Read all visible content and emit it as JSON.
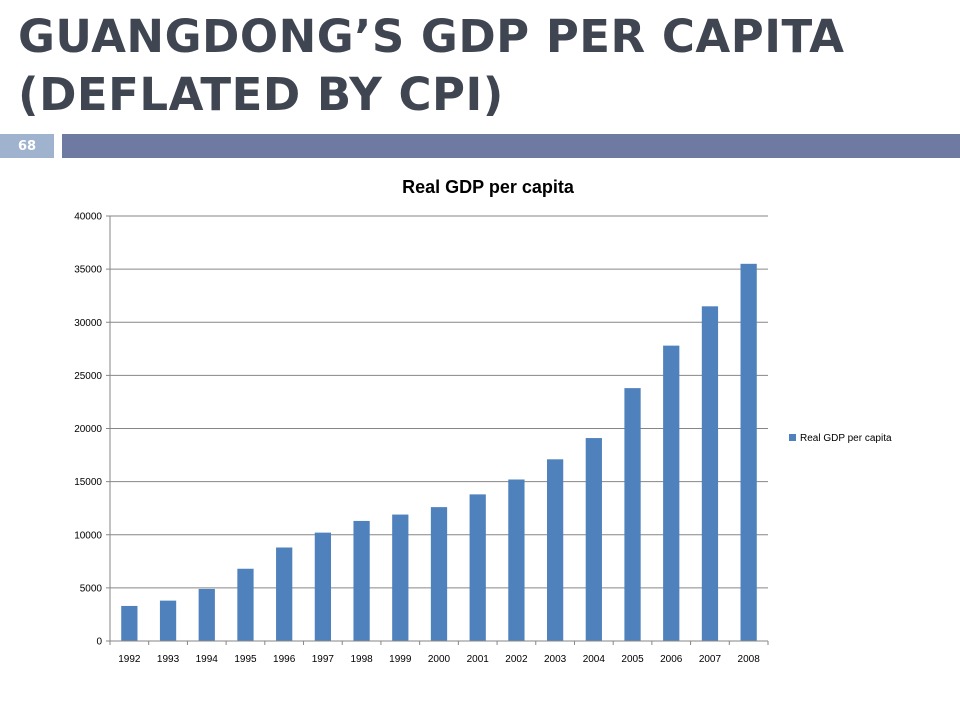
{
  "slide": {
    "title": "GUANGDONG’S GDP PER CAPITA (DEFLATED BY CPI)",
    "number": "68"
  },
  "colors": {
    "title": "#404552",
    "slide_number_bg": "#9fb3cf",
    "title_rule": "#6e7aa1",
    "bar": "#4f81bd",
    "grid": "#868686"
  },
  "chart_data": {
    "type": "bar",
    "title": "Real GDP per capita",
    "xlabel": "",
    "ylabel": "",
    "ylim": [
      0,
      40000
    ],
    "yticks": [
      0,
      5000,
      10000,
      15000,
      20000,
      25000,
      30000,
      35000,
      40000
    ],
    "grid": true,
    "legend_position": "right",
    "categories": [
      "1992",
      "1993",
      "1994",
      "1995",
      "1996",
      "1997",
      "1998",
      "1999",
      "2000",
      "2001",
      "2002",
      "2003",
      "2004",
      "2005",
      "2006",
      "2007",
      "2008"
    ],
    "series": [
      {
        "name": "Real GDP per capita",
        "color": "#4f81bd",
        "values": [
          3300,
          3800,
          4900,
          6800,
          8800,
          10200,
          11300,
          11900,
          12600,
          13800,
          15200,
          17100,
          19100,
          23800,
          27800,
          31500,
          35500
        ]
      }
    ]
  }
}
